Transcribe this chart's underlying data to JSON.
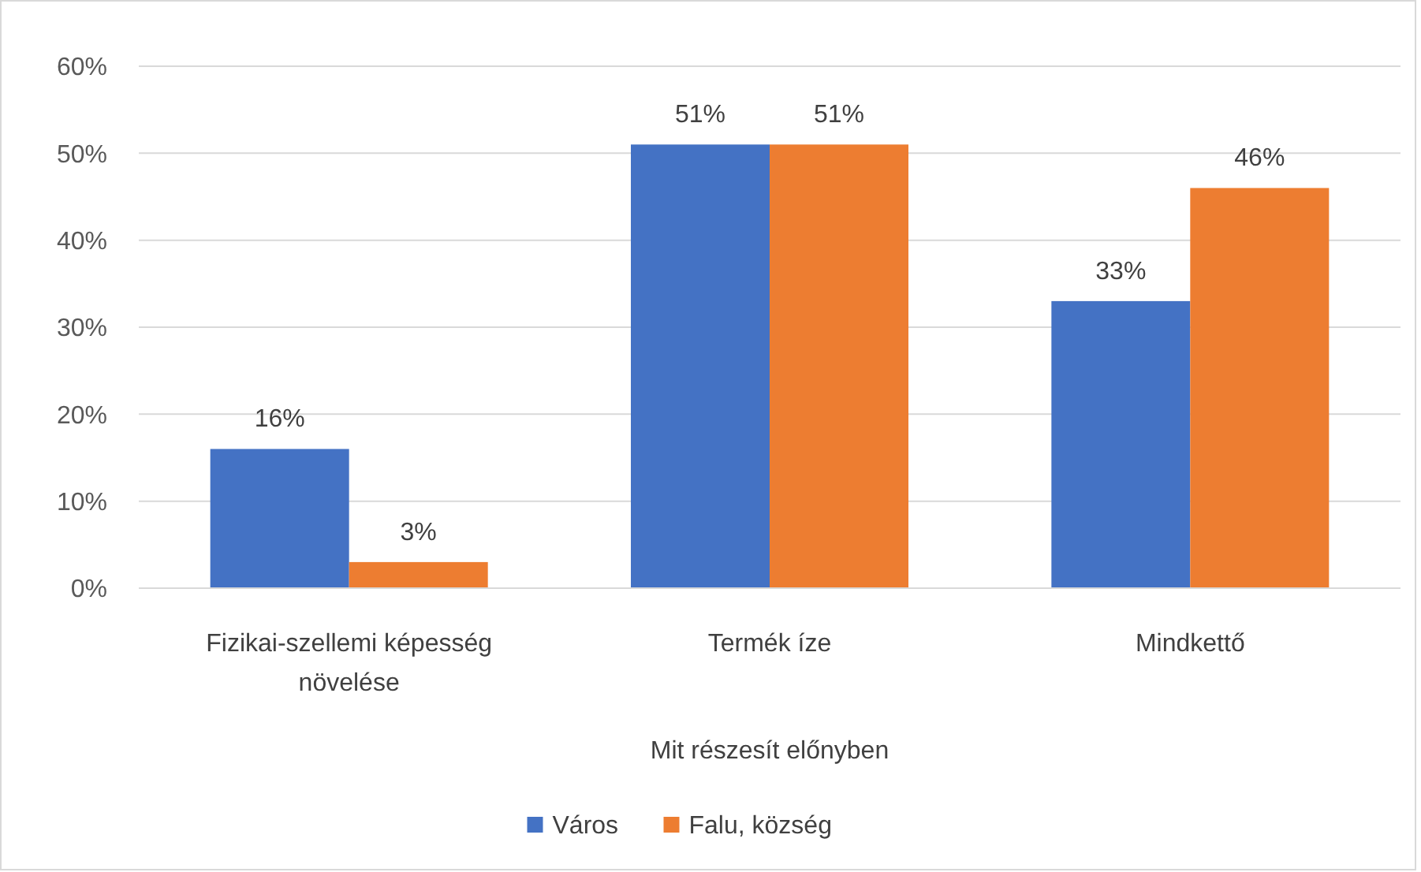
{
  "chart_data": {
    "type": "bar",
    "xlabel": "Mit részesít előnyben",
    "categories": [
      "Fizikai-szellemi képesség növelése",
      "Termék íze",
      "Mindkettő"
    ],
    "series": [
      {
        "name": "Város",
        "color": "#4472c4",
        "values": [
          16,
          51,
          33
        ],
        "value_labels": [
          "16%",
          "51%",
          "33%"
        ]
      },
      {
        "name": "Falu, község",
        "color": "#ed7d31",
        "values": [
          3,
          51,
          46
        ],
        "value_labels": [
          "3%",
          "51%",
          "46%"
        ]
      }
    ],
    "ylim": [
      0,
      60
    ],
    "yticks": [
      {
        "value": 0,
        "label": "0%"
      },
      {
        "value": 10,
        "label": "10%"
      },
      {
        "value": 20,
        "label": "20%"
      },
      {
        "value": 30,
        "label": "30%"
      },
      {
        "value": 40,
        "label": "40%"
      },
      {
        "value": 50,
        "label": "50%"
      },
      {
        "value": 60,
        "label": "60%"
      }
    ],
    "grid": "y",
    "legend": "bottom"
  }
}
